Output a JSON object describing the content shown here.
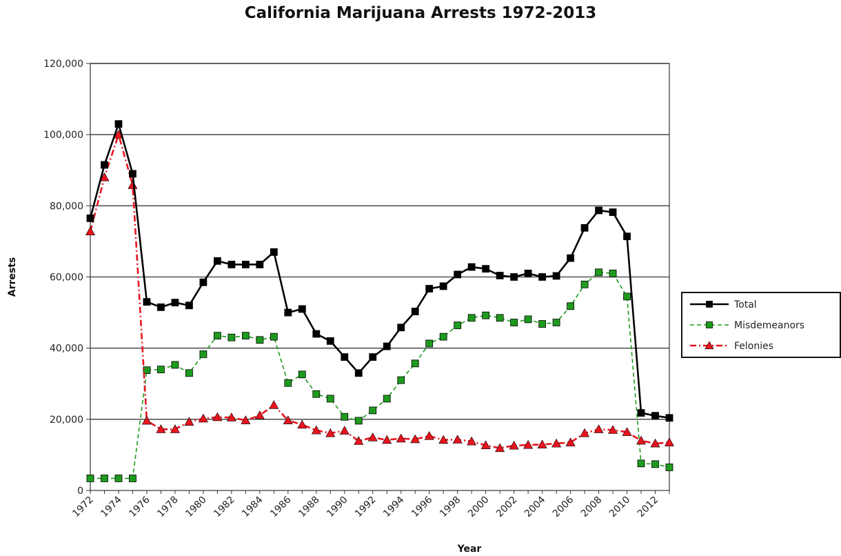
{
  "chart_data": {
    "type": "line",
    "title": "California Marijuana Arrests 1972-2013",
    "xlabel": "Year",
    "ylabel": "Arrests",
    "ylim": [
      0,
      120000
    ],
    "xlim": [
      1972,
      2013
    ],
    "y_ticks": [
      "0",
      "20,000",
      "40,000",
      "60,000",
      "80,000",
      "100,000",
      "120,000"
    ],
    "x_ticks": [
      "1972",
      "1974",
      "1976",
      "1978",
      "1980",
      "1982",
      "1984",
      "1986",
      "1988",
      "1990",
      "1992",
      "1994",
      "1996",
      "1998",
      "2000",
      "2002",
      "2004",
      "2006",
      "2008",
      "2010",
      "2012"
    ],
    "grid": "horizontal",
    "legend_position": "right",
    "x": [
      1972,
      1973,
      1974,
      1975,
      1976,
      1977,
      1978,
      1979,
      1980,
      1981,
      1982,
      1983,
      1984,
      1985,
      1986,
      1987,
      1988,
      1989,
      1990,
      1991,
      1992,
      1993,
      1994,
      1995,
      1996,
      1997,
      1998,
      1999,
      2000,
      2001,
      2002,
      2003,
      2004,
      2005,
      2006,
      2007,
      2008,
      2009,
      2010,
      2011,
      2012,
      2013
    ],
    "series": [
      {
        "name": "Total",
        "color": "#000000",
        "style": "solid",
        "marker": "square",
        "values": [
          76500,
          91500,
          103000,
          89000,
          53000,
          51500,
          52800,
          52000,
          58500,
          64500,
          63500,
          63500,
          63500,
          67000,
          50000,
          51000,
          44000,
          42000,
          37500,
          33000,
          37500,
          40500,
          45800,
          50300,
          56700,
          57400,
          60700,
          62800,
          62300,
          60400,
          60000,
          61000,
          60000,
          60300,
          65300,
          73800,
          78700,
          78200,
          71400,
          21800,
          21000,
          20400
        ]
      },
      {
        "name": "Misdemeanors",
        "color": "#1e9a1e",
        "style": "dashed",
        "marker": "square",
        "values": [
          3400,
          3400,
          3400,
          3400,
          33800,
          34000,
          35300,
          33000,
          38300,
          43500,
          43000,
          43500,
          42300,
          43200,
          30200,
          32600,
          27100,
          25800,
          20700,
          19600,
          22500,
          25800,
          31000,
          35700,
          41300,
          43200,
          46400,
          48500,
          49200,
          48500,
          47200,
          48100,
          46800,
          47200,
          51800,
          57900,
          61300,
          61000,
          54500,
          7600,
          7400,
          6500
        ]
      },
      {
        "name": "Felonies",
        "color": "#e8141e",
        "style": "dashdot",
        "marker": "triangle",
        "values": [
          72800,
          88000,
          100000,
          85800,
          19600,
          17200,
          17200,
          19300,
          20200,
          20600,
          20500,
          19700,
          21100,
          24000,
          19700,
          18500,
          16900,
          16100,
          16800,
          13900,
          14900,
          14200,
          14600,
          14400,
          15300,
          14200,
          14300,
          13800,
          12700,
          11900,
          12600,
          12800,
          12900,
          13200,
          13500,
          16100,
          17200,
          17000,
          16400,
          14000,
          13200,
          13500
        ]
      }
    ]
  }
}
